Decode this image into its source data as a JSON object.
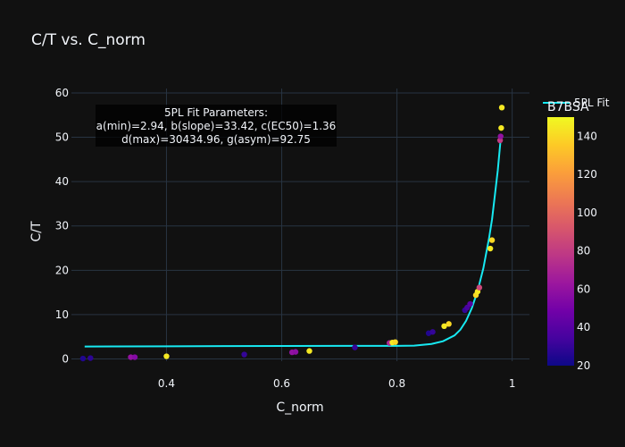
{
  "chart_data": {
    "type": "scatter",
    "title": "C/T vs. C_norm",
    "xlabel": "C_norm",
    "ylabel": "C/T",
    "xlim": [
      0.235,
      1.03
    ],
    "ylim": [
      -0.5,
      61
    ],
    "xticks": [
      0.4,
      0.6,
      0.8,
      1
    ],
    "xtick_labels": [
      "0.4",
      "0.6",
      "0.8",
      "1"
    ],
    "yticks": [
      0,
      10,
      20,
      30,
      40,
      50,
      60
    ],
    "ytick_labels": [
      "0",
      "10",
      "20",
      "30",
      "40",
      "50",
      "60"
    ],
    "grid": true,
    "colorbar": {
      "title": "B7BSA",
      "range": [
        20,
        150
      ],
      "ticks": [
        20,
        40,
        60,
        80,
        100,
        120,
        140
      ],
      "tick_labels": [
        "20",
        "40",
        "60",
        "80",
        "100",
        "120",
        "140"
      ],
      "colorscale": [
        "#0d0887",
        "#46039f",
        "#7201a8",
        "#9c179e",
        "#bd3786",
        "#d8576b",
        "#ed7953",
        "#fb9f3a",
        "#fdca26",
        "#f0f921"
      ]
    },
    "legend": {
      "entries": [
        "5PL Fit"
      ],
      "position": "top-right"
    },
    "annotation": {
      "lines": [
        "5PL Fit Parameters:",
        "a(min)=2.94, b(slope)=33.42, c(EC50)=1.36",
        "d(max)=30434.96, g(asym)=92.75"
      ]
    },
    "points": [
      {
        "x": 0.255,
        "y": 0.1,
        "c": 25
      },
      {
        "x": 0.268,
        "y": 0.2,
        "c": 28
      },
      {
        "x": 0.338,
        "y": 0.4,
        "c": 60
      },
      {
        "x": 0.345,
        "y": 0.4,
        "c": 55
      },
      {
        "x": 0.4,
        "y": 0.6,
        "c": 145
      },
      {
        "x": 0.535,
        "y": 1.0,
        "c": 30
      },
      {
        "x": 0.618,
        "y": 1.5,
        "c": 60
      },
      {
        "x": 0.624,
        "y": 1.6,
        "c": 58
      },
      {
        "x": 0.648,
        "y": 1.8,
        "c": 145
      },
      {
        "x": 0.727,
        "y": 2.6,
        "c": 30
      },
      {
        "x": 0.787,
        "y": 3.6,
        "c": 70
      },
      {
        "x": 0.792,
        "y": 3.7,
        "c": 145
      },
      {
        "x": 0.797,
        "y": 3.8,
        "c": 140
      },
      {
        "x": 0.855,
        "y": 5.8,
        "c": 25
      },
      {
        "x": 0.862,
        "y": 6.1,
        "c": 30
      },
      {
        "x": 0.882,
        "y": 7.4,
        "c": 145
      },
      {
        "x": 0.89,
        "y": 7.9,
        "c": 140
      },
      {
        "x": 0.918,
        "y": 11.0,
        "c": 30
      },
      {
        "x": 0.922,
        "y": 11.6,
        "c": 35
      },
      {
        "x": 0.927,
        "y": 12.4,
        "c": 40
      },
      {
        "x": 0.937,
        "y": 14.4,
        "c": 140
      },
      {
        "x": 0.94,
        "y": 15.2,
        "c": 145
      },
      {
        "x": 0.943,
        "y": 16.1,
        "c": 85
      },
      {
        "x": 0.962,
        "y": 24.9,
        "c": 145
      },
      {
        "x": 0.965,
        "y": 26.8,
        "c": 140
      },
      {
        "x": 0.979,
        "y": 49.3,
        "c": 80
      },
      {
        "x": 0.98,
        "y": 50.2,
        "c": 60
      },
      {
        "x": 0.981,
        "y": 52.1,
        "c": 145
      },
      {
        "x": 0.982,
        "y": 56.7,
        "c": 145
      }
    ],
    "fit_series": {
      "name": "5PL Fit",
      "color": "#17e9f2",
      "x": [
        0.258,
        0.4,
        0.5,
        0.6,
        0.7,
        0.8,
        0.83,
        0.86,
        0.88,
        0.9,
        0.91,
        0.92,
        0.93,
        0.94,
        0.95,
        0.96,
        0.965,
        0.97,
        0.975,
        0.98
      ],
      "y": [
        2.8,
        2.85,
        2.9,
        2.92,
        2.94,
        2.95,
        3.0,
        3.4,
        4.0,
        5.3,
        6.6,
        8.6,
        11.5,
        15.3,
        20.5,
        27.3,
        31.5,
        37.0,
        42.5,
        49.5
      ]
    }
  }
}
